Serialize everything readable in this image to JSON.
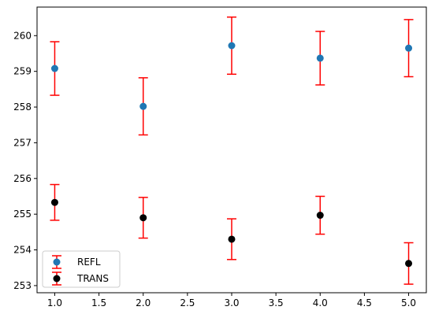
{
  "chart_data": {
    "type": "scatter",
    "title": "",
    "xlabel": "",
    "ylabel": "",
    "xlim": [
      0.8,
      5.2
    ],
    "ylim": [
      252.8,
      260.8
    ],
    "x_ticks": [
      1.0,
      1.5,
      2.0,
      2.5,
      3.0,
      3.5,
      4.0,
      4.5,
      5.0
    ],
    "x_tick_labels": [
      "1.0",
      "1.5",
      "2.0",
      "2.5",
      "3.0",
      "3.5",
      "4.0",
      "4.5",
      "5.0"
    ],
    "y_ticks": [
      253,
      254,
      255,
      256,
      257,
      258,
      259,
      260
    ],
    "y_tick_labels": [
      "253",
      "254",
      "255",
      "256",
      "257",
      "258",
      "259",
      "260"
    ],
    "grid": false,
    "legend_position": "lower-left",
    "error_bar_color": "#ff0000",
    "series": [
      {
        "name": "REFL",
        "color": "#1f77b4",
        "x": [
          1,
          2,
          3,
          4,
          5
        ],
        "y": [
          259.08,
          258.02,
          259.72,
          259.37,
          259.65
        ],
        "yerr": [
          0.75,
          0.8,
          0.8,
          0.75,
          0.8
        ]
      },
      {
        "name": "TRANS",
        "color": "#000000",
        "x": [
          1,
          2,
          3,
          4,
          5
        ],
        "y": [
          255.33,
          254.9,
          254.3,
          254.97,
          253.62
        ],
        "yerr": [
          0.5,
          0.57,
          0.57,
          0.53,
          0.58
        ]
      }
    ]
  }
}
